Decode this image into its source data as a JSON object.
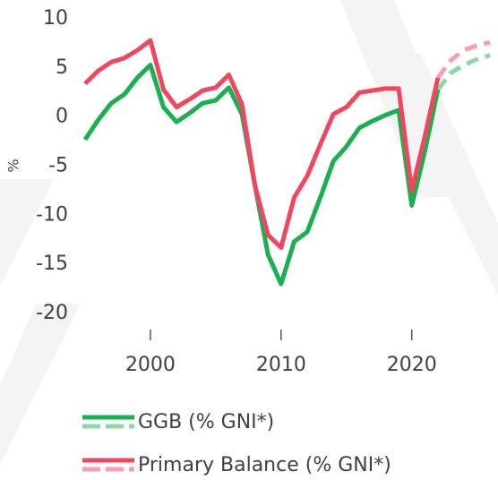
{
  "chart_data": {
    "type": "line",
    "y_label": "%",
    "x": [
      1995,
      1996,
      1997,
      1998,
      1999,
      2000,
      2001,
      2002,
      2003,
      2004,
      2005,
      2006,
      2007,
      2008,
      2009,
      2010,
      2011,
      2012,
      2013,
      2014,
      2015,
      2016,
      2017,
      2018,
      2019,
      2020,
      2021,
      2022,
      2023,
      2024,
      2025,
      2026
    ],
    "series": [
      {
        "name": "GGB (% GNI*)",
        "color": "#1aaf50",
        "projection_color": "#8fd6a8",
        "values": [
          -2.3,
          -0.3,
          1.4,
          2.3,
          4.0,
          5.3,
          1.0,
          -0.5,
          0.4,
          1.4,
          1.7,
          3.0,
          0.3,
          -7.0,
          -14.0,
          -17.0,
          -12.7,
          -11.7,
          -8.2,
          -4.5,
          -3.0,
          -1.1,
          -0.4,
          0.2,
          0.7,
          -9.0,
          -3.5,
          2.8,
          null,
          null,
          null,
          null
        ],
        "projection": [
          null,
          null,
          null,
          null,
          null,
          null,
          null,
          null,
          null,
          null,
          null,
          null,
          null,
          null,
          null,
          null,
          null,
          null,
          null,
          null,
          null,
          null,
          null,
          null,
          null,
          null,
          null,
          2.8,
          4.5,
          5.3,
          5.9,
          6.3
        ]
      },
      {
        "name": "Primary Balance (% GNI*)",
        "color": "#f0475f",
        "projection_color": "#f5a0ae",
        "values": [
          3.4,
          4.7,
          5.6,
          6.0,
          6.8,
          7.8,
          2.8,
          1.0,
          1.8,
          2.7,
          3.0,
          4.3,
          1.3,
          -7.0,
          -12.0,
          -13.3,
          -8.2,
          -6.0,
          -2.8,
          0.3,
          1.0,
          2.5,
          2.7,
          2.9,
          2.9,
          -7.5,
          -2.0,
          4.0,
          null,
          null,
          null,
          null
        ],
        "projection": [
          null,
          null,
          null,
          null,
          null,
          null,
          null,
          null,
          null,
          null,
          null,
          null,
          null,
          null,
          null,
          null,
          null,
          null,
          null,
          null,
          null,
          null,
          null,
          null,
          null,
          null,
          null,
          4.0,
          5.8,
          6.8,
          7.3,
          7.6
        ]
      }
    ],
    "xlim": [
      1995,
      2026.6
    ],
    "xticks": [
      2000,
      2010,
      2020
    ],
    "ylim": [
      -20,
      10
    ],
    "yticks": [
      10,
      5,
      0,
      -5,
      -10,
      -15,
      -20
    ],
    "grid": false
  }
}
